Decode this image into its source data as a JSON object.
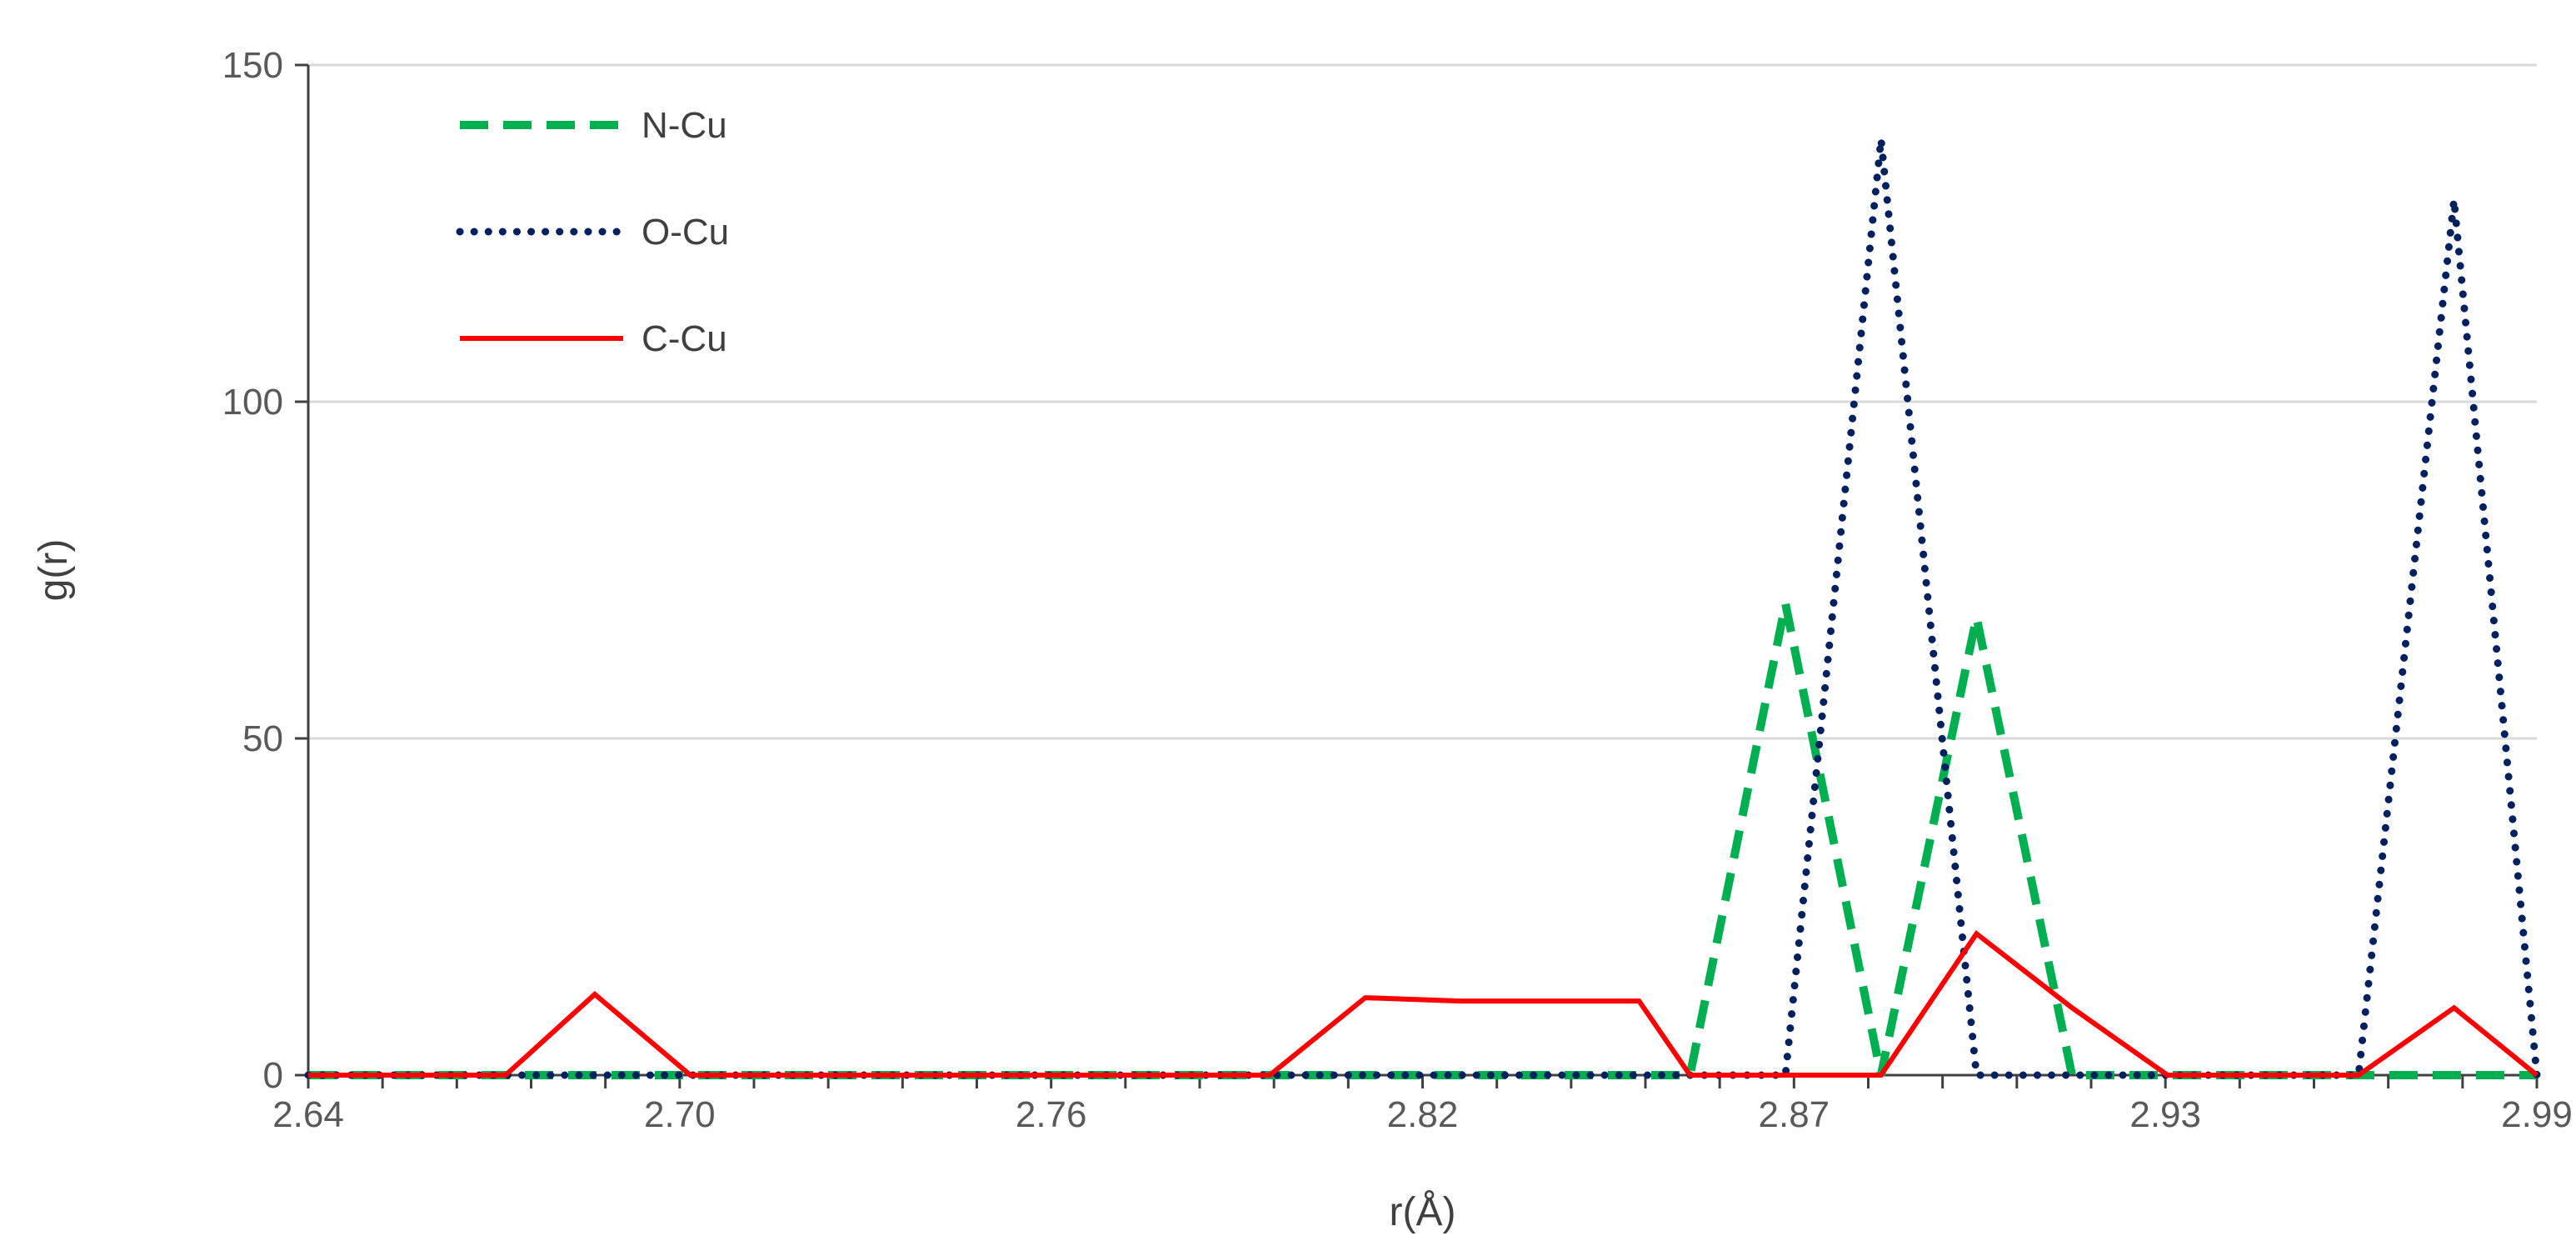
{
  "chart_data": {
    "type": "line",
    "xlabel": "r(Å)",
    "ylabel": "g(r)",
    "xlim": [
      2.64,
      2.99
    ],
    "ylim": [
      0,
      150
    ],
    "x_ticks": [
      "2.64",
      "2.70",
      "2.76",
      "2.82",
      "2.87",
      "2.93",
      "2.99"
    ],
    "y_ticks": [
      "0",
      "50",
      "100",
      "150"
    ],
    "grid": "horizontal",
    "legend_position": "top-left",
    "series": [
      {
        "name": "N-Cu",
        "color": "#00b050",
        "style": "dashed",
        "x": [
          2.64,
          2.857,
          2.872,
          2.887,
          2.902,
          2.917,
          2.99
        ],
        "y": [
          0,
          0,
          70,
          0,
          68,
          0,
          0
        ]
      },
      {
        "name": "O-Cu",
        "color": "#002060",
        "style": "dotted",
        "x": [
          2.64,
          2.872,
          2.887,
          2.902,
          2.962,
          2.977,
          2.99
        ],
        "y": [
          0,
          0,
          139,
          0,
          0,
          130,
          0
        ]
      },
      {
        "name": "C-Cu",
        "color": "#ff0000",
        "style": "solid",
        "x": [
          2.64,
          2.671,
          2.685,
          2.7,
          2.791,
          2.806,
          2.821,
          2.836,
          2.849,
          2.857,
          2.887,
          2.902,
          2.917,
          2.932,
          2.962,
          2.977,
          2.99
        ],
        "y": [
          0,
          0,
          12,
          0,
          0,
          11.5,
          11,
          11,
          11,
          0,
          0,
          21,
          10,
          0,
          0,
          10,
          0
        ]
      }
    ]
  }
}
